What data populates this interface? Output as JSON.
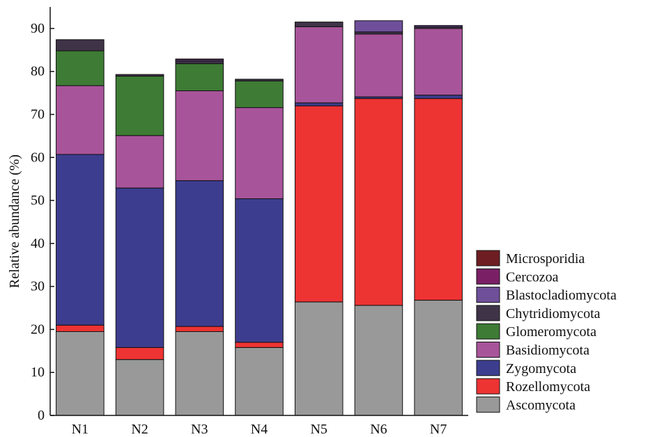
{
  "chart_data": {
    "type": "bar",
    "stacked": true,
    "title": "",
    "xlabel": "",
    "ylabel": "Relative abundance (%)",
    "ylim": [
      0,
      95
    ],
    "yticks": [
      0,
      10,
      20,
      30,
      40,
      50,
      60,
      70,
      80,
      90
    ],
    "grid": false,
    "legend_position": "bottom-right",
    "categories": [
      "N1",
      "N2",
      "N3",
      "N4",
      "N5",
      "N6",
      "N7"
    ],
    "series": [
      {
        "name": "Ascomycota",
        "color": "#999999",
        "values": [
          19.5,
          13.0,
          19.5,
          15.8,
          26.4,
          25.6,
          26.8
        ]
      },
      {
        "name": "Rozellomycota",
        "color": "#ee3333",
        "values": [
          1.5,
          2.8,
          1.2,
          1.2,
          45.6,
          48.1,
          46.9
        ]
      },
      {
        "name": "Zygomycota",
        "color": "#3d3d8f",
        "values": [
          39.7,
          37.1,
          33.9,
          33.4,
          0.7,
          0.4,
          0.8
        ]
      },
      {
        "name": "Basidiomycota",
        "color": "#a8549a",
        "values": [
          16.0,
          12.2,
          20.9,
          21.2,
          17.7,
          14.6,
          15.5
        ]
      },
      {
        "name": "Glomeromycota",
        "color": "#3e7b35",
        "values": [
          8.1,
          13.8,
          6.3,
          6.2,
          0.0,
          0.0,
          0.0
        ]
      },
      {
        "name": "Chytridiomycota",
        "color": "#3f3348",
        "values": [
          2.6,
          0.4,
          0.6,
          0.4,
          1.1,
          0.5,
          0.4
        ]
      },
      {
        "name": "Blastocladiomycota",
        "color": "#6f4f9a",
        "values": [
          0.0,
          0.0,
          0.3,
          0.0,
          0.0,
          2.6,
          0.3
        ]
      },
      {
        "name": "Cercozoa",
        "color": "#7a1f66",
        "values": [
          0.0,
          0.0,
          0.2,
          0.0,
          0.0,
          0.0,
          0.0
        ]
      },
      {
        "name": "Microsporidia",
        "color": "#6e1e22",
        "values": [
          0.0,
          0.0,
          0.0,
          0.0,
          0.0,
          0.0,
          0.0
        ]
      }
    ]
  }
}
